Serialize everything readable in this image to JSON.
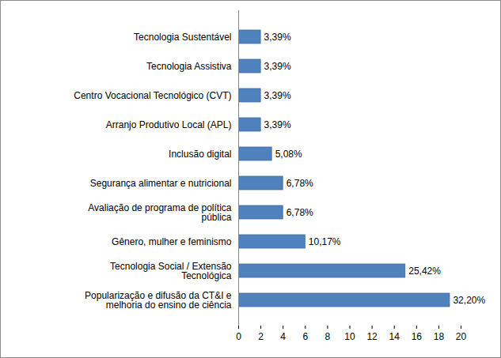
{
  "chart_data": {
    "type": "bar",
    "orientation": "horizontal",
    "categories": [
      "Tecnologia Sustentável",
      "Tecnologia Assistiva",
      "Centro Vocacional Tecnológico (CVT)",
      "Arranjo Produtivo Local (APL)",
      "Inclusão digital",
      "Segurança alimentar e nutricional",
      "Avaliação de programa de política pública",
      "Gênero, mulher e feminismo",
      "Tecnologia Social / Extensão Tecnológica",
      "Popularização e difusão da CT&I e melhoria do ensino de ciência"
    ],
    "values": [
      2,
      2,
      2,
      2,
      3,
      4,
      4,
      6,
      15,
      19
    ],
    "value_labels": [
      "3,39%",
      "3,39%",
      "3,39%",
      "3,39%",
      "5,08%",
      "6,78%",
      "6,78%",
      "10,17%",
      "25,42%",
      "32,20%"
    ],
    "data_labels": true,
    "color": "#4f81bd",
    "xlim": [
      0,
      20
    ],
    "xticks": [
      0,
      2,
      4,
      6,
      8,
      10,
      12,
      14,
      16,
      18,
      20
    ],
    "grid": false
  }
}
